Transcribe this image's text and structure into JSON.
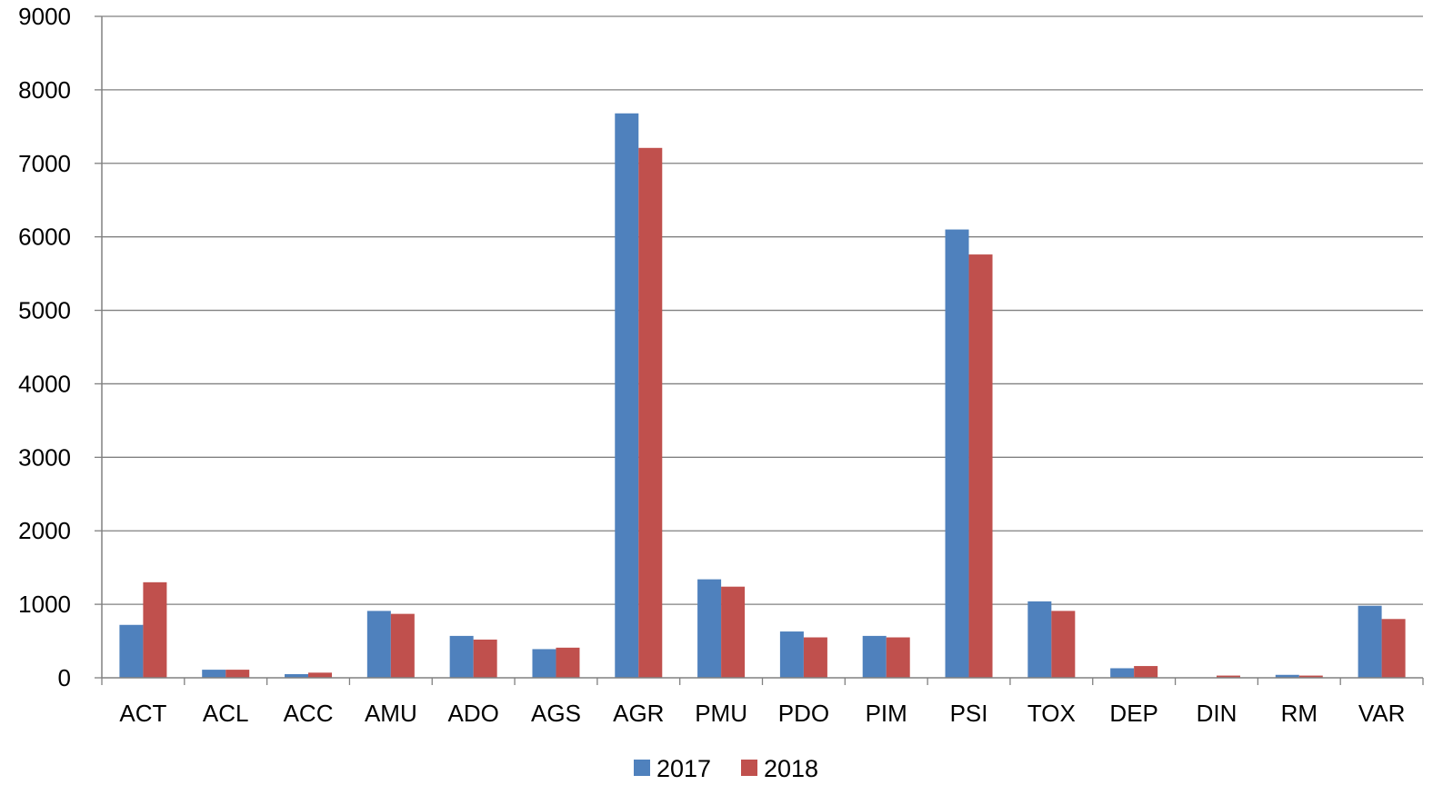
{
  "chart_data": {
    "type": "bar",
    "categories": [
      "ACT",
      "ACL",
      "ACC",
      "AMU",
      "ADO",
      "AGS",
      "AGR",
      "PMU",
      "PDO",
      "PIM",
      "PSI",
      "TOX",
      "DEP",
      "DIN",
      "RM",
      "VAR"
    ],
    "series": [
      {
        "name": "2017",
        "color": "#4F81BD",
        "values": [
          720,
          110,
          50,
          910,
          570,
          390,
          7680,
          1340,
          630,
          570,
          6100,
          1040,
          130,
          0,
          40,
          980
        ]
      },
      {
        "name": "2018",
        "color": "#C0504D",
        "values": [
          1300,
          110,
          70,
          870,
          520,
          410,
          7210,
          1240,
          550,
          550,
          5760,
          910,
          160,
          30,
          30,
          800
        ]
      }
    ],
    "yticks": [
      "0",
      "1000",
      "2000",
      "3000",
      "4000",
      "5000",
      "6000",
      "7000",
      "8000",
      "9000"
    ],
    "ylim": [
      0,
      9000
    ],
    "grid": true,
    "legend_position": "bottom-center",
    "gridline_color": "#808080",
    "axis_color": "#808080"
  }
}
